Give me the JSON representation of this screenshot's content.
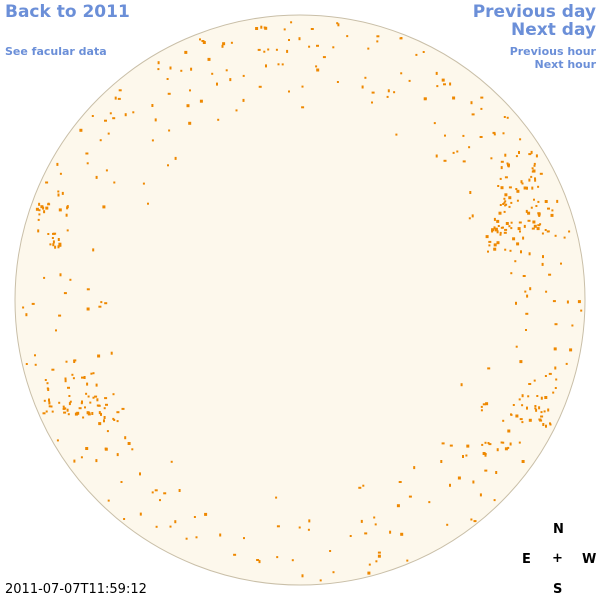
{
  "nav": {
    "back_label": "Back to 2011",
    "facular_label": "See facular data",
    "previous_day_label": "Previous day",
    "next_day_label": "Next day",
    "previous_hour_label": "Previous hour",
    "next_hour_label": "Next hour"
  },
  "compass": {
    "north": "N",
    "east": "E",
    "center": "+",
    "west": "W",
    "south": "S"
  },
  "timestamp": "2011-07-07T11:59:12",
  "colors": {
    "link": "#6b8fd8",
    "disk_fill": "#fdf8ec",
    "disk_border": "#c9bfa8",
    "facula": "#ee8800"
  },
  "icons": {
    "sun_disk": "sun-disk-icon"
  }
}
